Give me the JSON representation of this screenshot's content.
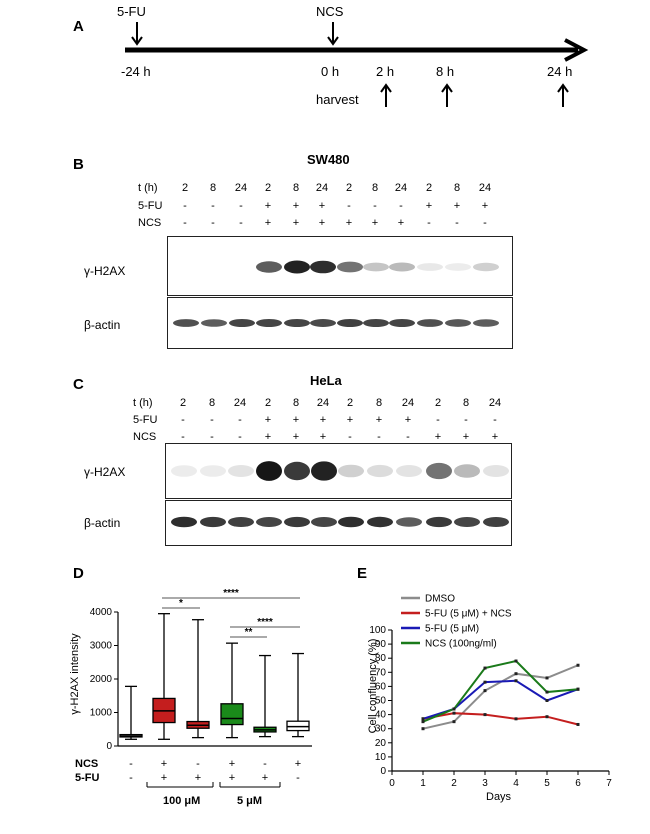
{
  "panel_a": {
    "label": "A",
    "drug1": "5-FU",
    "drug2": "NCS",
    "times": [
      "-24 h",
      "0 h",
      "2 h",
      "8 h",
      "24 h"
    ],
    "harvest": "harvest"
  },
  "panel_b": {
    "label": "B",
    "title": "SW480",
    "row_labels": [
      "t (h)",
      "5-FU",
      "NCS"
    ],
    "t": [
      "2",
      "8",
      "24",
      "2",
      "8",
      "24",
      "2",
      "8",
      "24",
      "2",
      "8",
      "24"
    ],
    "fu": [
      "-",
      "-",
      "-",
      "+",
      "+",
      "+",
      "-",
      "-",
      "-",
      "+",
      "+",
      "+"
    ],
    "ncs": [
      "-",
      "-",
      "-",
      "+",
      "+",
      "+",
      "+",
      "+",
      "+",
      "-",
      "-",
      "-"
    ],
    "blot1": "γ-H2AX",
    "blot2": "β-actin",
    "h2ax_intensity": [
      0,
      0,
      0,
      0.7,
      0.95,
      0.9,
      0.6,
      0.25,
      0.3,
      0.1,
      0.08,
      0.2
    ],
    "actin_intensity": [
      0.75,
      0.7,
      0.8,
      0.8,
      0.8,
      0.78,
      0.82,
      0.8,
      0.8,
      0.75,
      0.72,
      0.7
    ]
  },
  "panel_c": {
    "label": "C",
    "title": "HeLa",
    "row_labels": [
      "t (h)",
      "5-FU",
      "NCS"
    ],
    "t": [
      "2",
      "8",
      "24",
      "2",
      "8",
      "24",
      "2",
      "8",
      "24",
      "2",
      "8",
      "24"
    ],
    "fu": [
      "-",
      "-",
      "-",
      "+",
      "+",
      "+",
      "+",
      "+",
      "+",
      "-",
      "-",
      "-"
    ],
    "ncs": [
      "-",
      "-",
      "-",
      "+",
      "+",
      "+",
      "-",
      "-",
      "-",
      "+",
      "+",
      "+"
    ],
    "blot1": "γ-H2AX",
    "blot2": "β-actin",
    "h2ax_intensity": [
      0.08,
      0.08,
      0.12,
      1.0,
      0.85,
      0.95,
      0.2,
      0.15,
      0.12,
      0.6,
      0.3,
      0.12
    ],
    "actin_intensity": [
      0.9,
      0.85,
      0.82,
      0.8,
      0.85,
      0.8,
      0.9,
      0.88,
      0.7,
      0.85,
      0.8,
      0.82
    ]
  },
  "panel_d": {
    "label": "D",
    "ylabel": "γ-H2AX intensity",
    "yticks": [
      "0",
      "1000",
      "2000",
      "3000",
      "4000"
    ],
    "row_labels": [
      "NCS",
      "5-FU"
    ],
    "ncs": [
      "-",
      "+",
      "-",
      "+",
      "-",
      "+"
    ],
    "fu": [
      "-",
      "+",
      "+",
      "+",
      "+",
      "-"
    ],
    "conc": [
      "100 μM",
      "5 μM"
    ],
    "sig": [
      "*",
      "****",
      "**",
      "****"
    ]
  },
  "panel_e": {
    "label": "E"
  },
  "chart_data": [
    {
      "type": "box",
      "ylabel": "γ-H2AX intensity",
      "ylim": [
        0,
        4000
      ],
      "groups": [
        {
          "ncs": "-",
          "fu": "-",
          "min": 200,
          "q1": 270,
          "median": 300,
          "q3": 340,
          "max": 1780,
          "color": "#ffffff"
        },
        {
          "ncs": "+",
          "fu": "+ (100 μM)",
          "min": 200,
          "q1": 700,
          "median": 1050,
          "q3": 1420,
          "max": 3950,
          "color": "#c41e1e"
        },
        {
          "ncs": "-",
          "fu": "+ (100 μM)",
          "min": 250,
          "q1": 530,
          "median": 620,
          "q3": 730,
          "max": 3770,
          "color": "#c41e1e"
        },
        {
          "ncs": "+",
          "fu": "+ (5 μM)",
          "min": 250,
          "q1": 640,
          "median": 820,
          "q3": 1260,
          "max": 3070,
          "color": "#1a8a1a"
        },
        {
          "ncs": "-",
          "fu": "+ (5 μM)",
          "min": 280,
          "q1": 420,
          "median": 480,
          "q3": 560,
          "max": 2700,
          "color": "#1a8a1a"
        },
        {
          "ncs": "+",
          "fu": "-",
          "min": 280,
          "q1": 460,
          "median": 580,
          "q3": 740,
          "max": 2760,
          "color": "#ffffff"
        }
      ],
      "significance": [
        {
          "from": 1,
          "to": 2,
          "label": "*"
        },
        {
          "from": 1,
          "to": 5,
          "label": "****"
        },
        {
          "from": 3,
          "to": 4,
          "label": "**"
        },
        {
          "from": 3,
          "to": 5,
          "label": "****"
        }
      ]
    },
    {
      "type": "line",
      "xlabel": "Days",
      "ylabel": "Cell confluency (%)",
      "xlim": [
        0,
        7
      ],
      "ylim": [
        0,
        100
      ],
      "xticks": [
        "0",
        "1",
        "2",
        "3",
        "4",
        "5",
        "6",
        "7"
      ],
      "yticks": [
        "0",
        "10",
        "20",
        "30",
        "40",
        "50",
        "60",
        "70",
        "80",
        "90",
        "100"
      ],
      "legend_position": "top",
      "series": [
        {
          "name": "DMSO",
          "color": "#8c8c8c",
          "x": [
            1,
            2,
            3,
            4,
            5,
            6
          ],
          "y": [
            30,
            35,
            57,
            69,
            66,
            75
          ]
        },
        {
          "name": "5-FU (5 μM) + NCS",
          "color": "#c41e1e",
          "x": [
            1,
            2,
            3,
            4,
            5,
            6
          ],
          "y": [
            37,
            41,
            40,
            37,
            38.5,
            33
          ]
        },
        {
          "name": "5-FU (5 μM)",
          "color": "#1a1ab5",
          "x": [
            1,
            2,
            3,
            4,
            5,
            6
          ],
          "y": [
            37,
            44,
            63,
            64,
            50,
            58
          ]
        },
        {
          "name": "NCS (100ng/ml)",
          "color": "#1a7a1a",
          "x": [
            1,
            2,
            3,
            4,
            5,
            6
          ],
          "y": [
            35,
            44,
            73,
            78,
            56,
            58
          ]
        }
      ]
    }
  ]
}
